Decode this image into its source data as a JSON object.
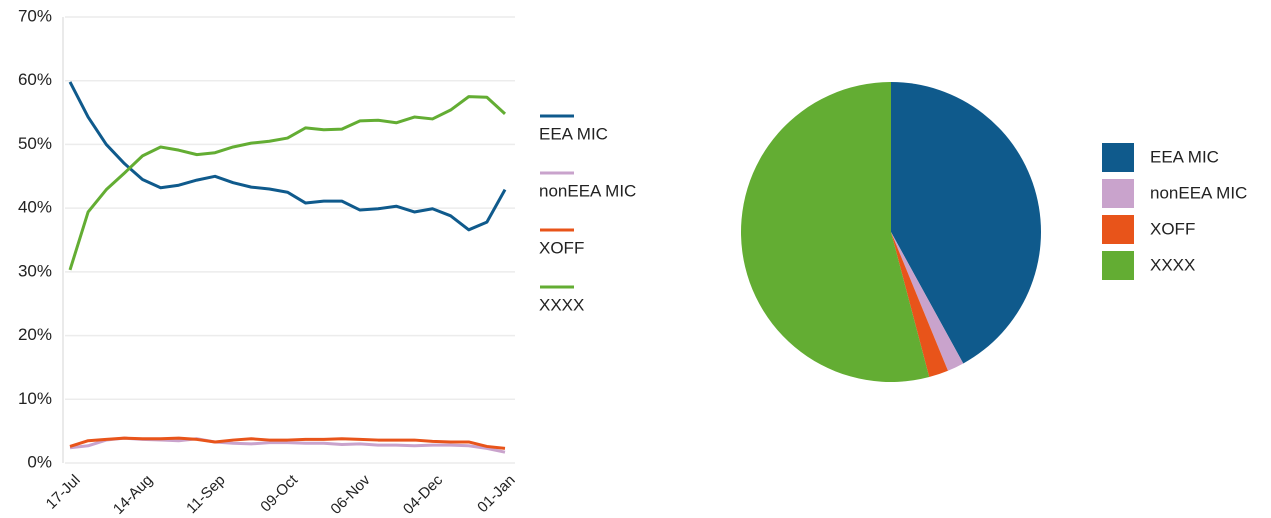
{
  "chart_data": [
    {
      "type": "line",
      "categories": [
        "17-Jul",
        null,
        null,
        null,
        "14-Aug",
        null,
        null,
        null,
        "11-Sep",
        null,
        null,
        null,
        "09-Oct",
        null,
        null,
        null,
        "06-Nov",
        null,
        null,
        null,
        "04-Dec",
        null,
        null,
        null,
        "01-Jan"
      ],
      "ylim": [
        0,
        70
      ],
      "yticks": [
        {
          "value": 0,
          "label": "0%"
        },
        {
          "value": 10,
          "label": "10%"
        },
        {
          "value": 20,
          "label": "20%"
        },
        {
          "value": 30,
          "label": "30%"
        },
        {
          "value": 40,
          "label": "40%"
        },
        {
          "value": 50,
          "label": "50%"
        },
        {
          "value": 60,
          "label": "60%"
        },
        {
          "value": 70,
          "label": "70%"
        }
      ],
      "grid": true,
      "series": [
        {
          "name": "EEA MIC",
          "color": "#0f5a8c",
          "values": [
            59.8,
            54.3,
            50,
            47,
            44.5,
            43.2,
            43.6,
            44.4,
            45,
            44,
            43.3,
            43,
            42.5,
            40.8,
            41.1,
            41.1,
            39.7,
            39.9,
            40.3,
            39.4,
            39.9,
            38.8,
            36.6,
            37.8,
            42.9
          ]
        },
        {
          "name": "nonEEA MIC",
          "color": "#c9a3cc",
          "values": [
            2.4,
            2.7,
            3.6,
            3.9,
            3.7,
            3.6,
            3.5,
            3.8,
            3.3,
            3.1,
            3.0,
            3.2,
            3.2,
            3.1,
            3.1,
            2.9,
            3.0,
            2.8,
            2.8,
            2.7,
            2.8,
            2.8,
            2.7,
            2.3,
            1.7
          ]
        },
        {
          "name": "XOFF",
          "color": "#e8541a",
          "values": [
            2.6,
            3.5,
            3.7,
            3.9,
            3.8,
            3.8,
            3.9,
            3.7,
            3.3,
            3.6,
            3.8,
            3.6,
            3.6,
            3.7,
            3.7,
            3.8,
            3.7,
            3.6,
            3.6,
            3.6,
            3.4,
            3.3,
            3.3,
            2.6,
            2.3
          ]
        },
        {
          "name": "XXXX",
          "color": "#63ad33",
          "values": [
            30.3,
            39.4,
            42.9,
            45.5,
            48.2,
            49.6,
            49.1,
            48.4,
            48.7,
            49.6,
            50.2,
            50.5,
            51,
            52.6,
            52.3,
            52.4,
            53.7,
            53.8,
            53.4,
            54.3,
            54,
            55.4,
            57.5,
            57.4,
            54.8
          ]
        }
      ]
    },
    {
      "type": "pie",
      "categories": [
        "EEA MIC",
        "nonEEA MIC",
        "XOFF",
        "XXXX"
      ],
      "values": [
        42,
        1.8,
        2.1,
        54.1
      ],
      "colors": [
        "#0f5a8c",
        "#c9a3cc",
        "#e8541a",
        "#63ad33"
      ]
    }
  ]
}
